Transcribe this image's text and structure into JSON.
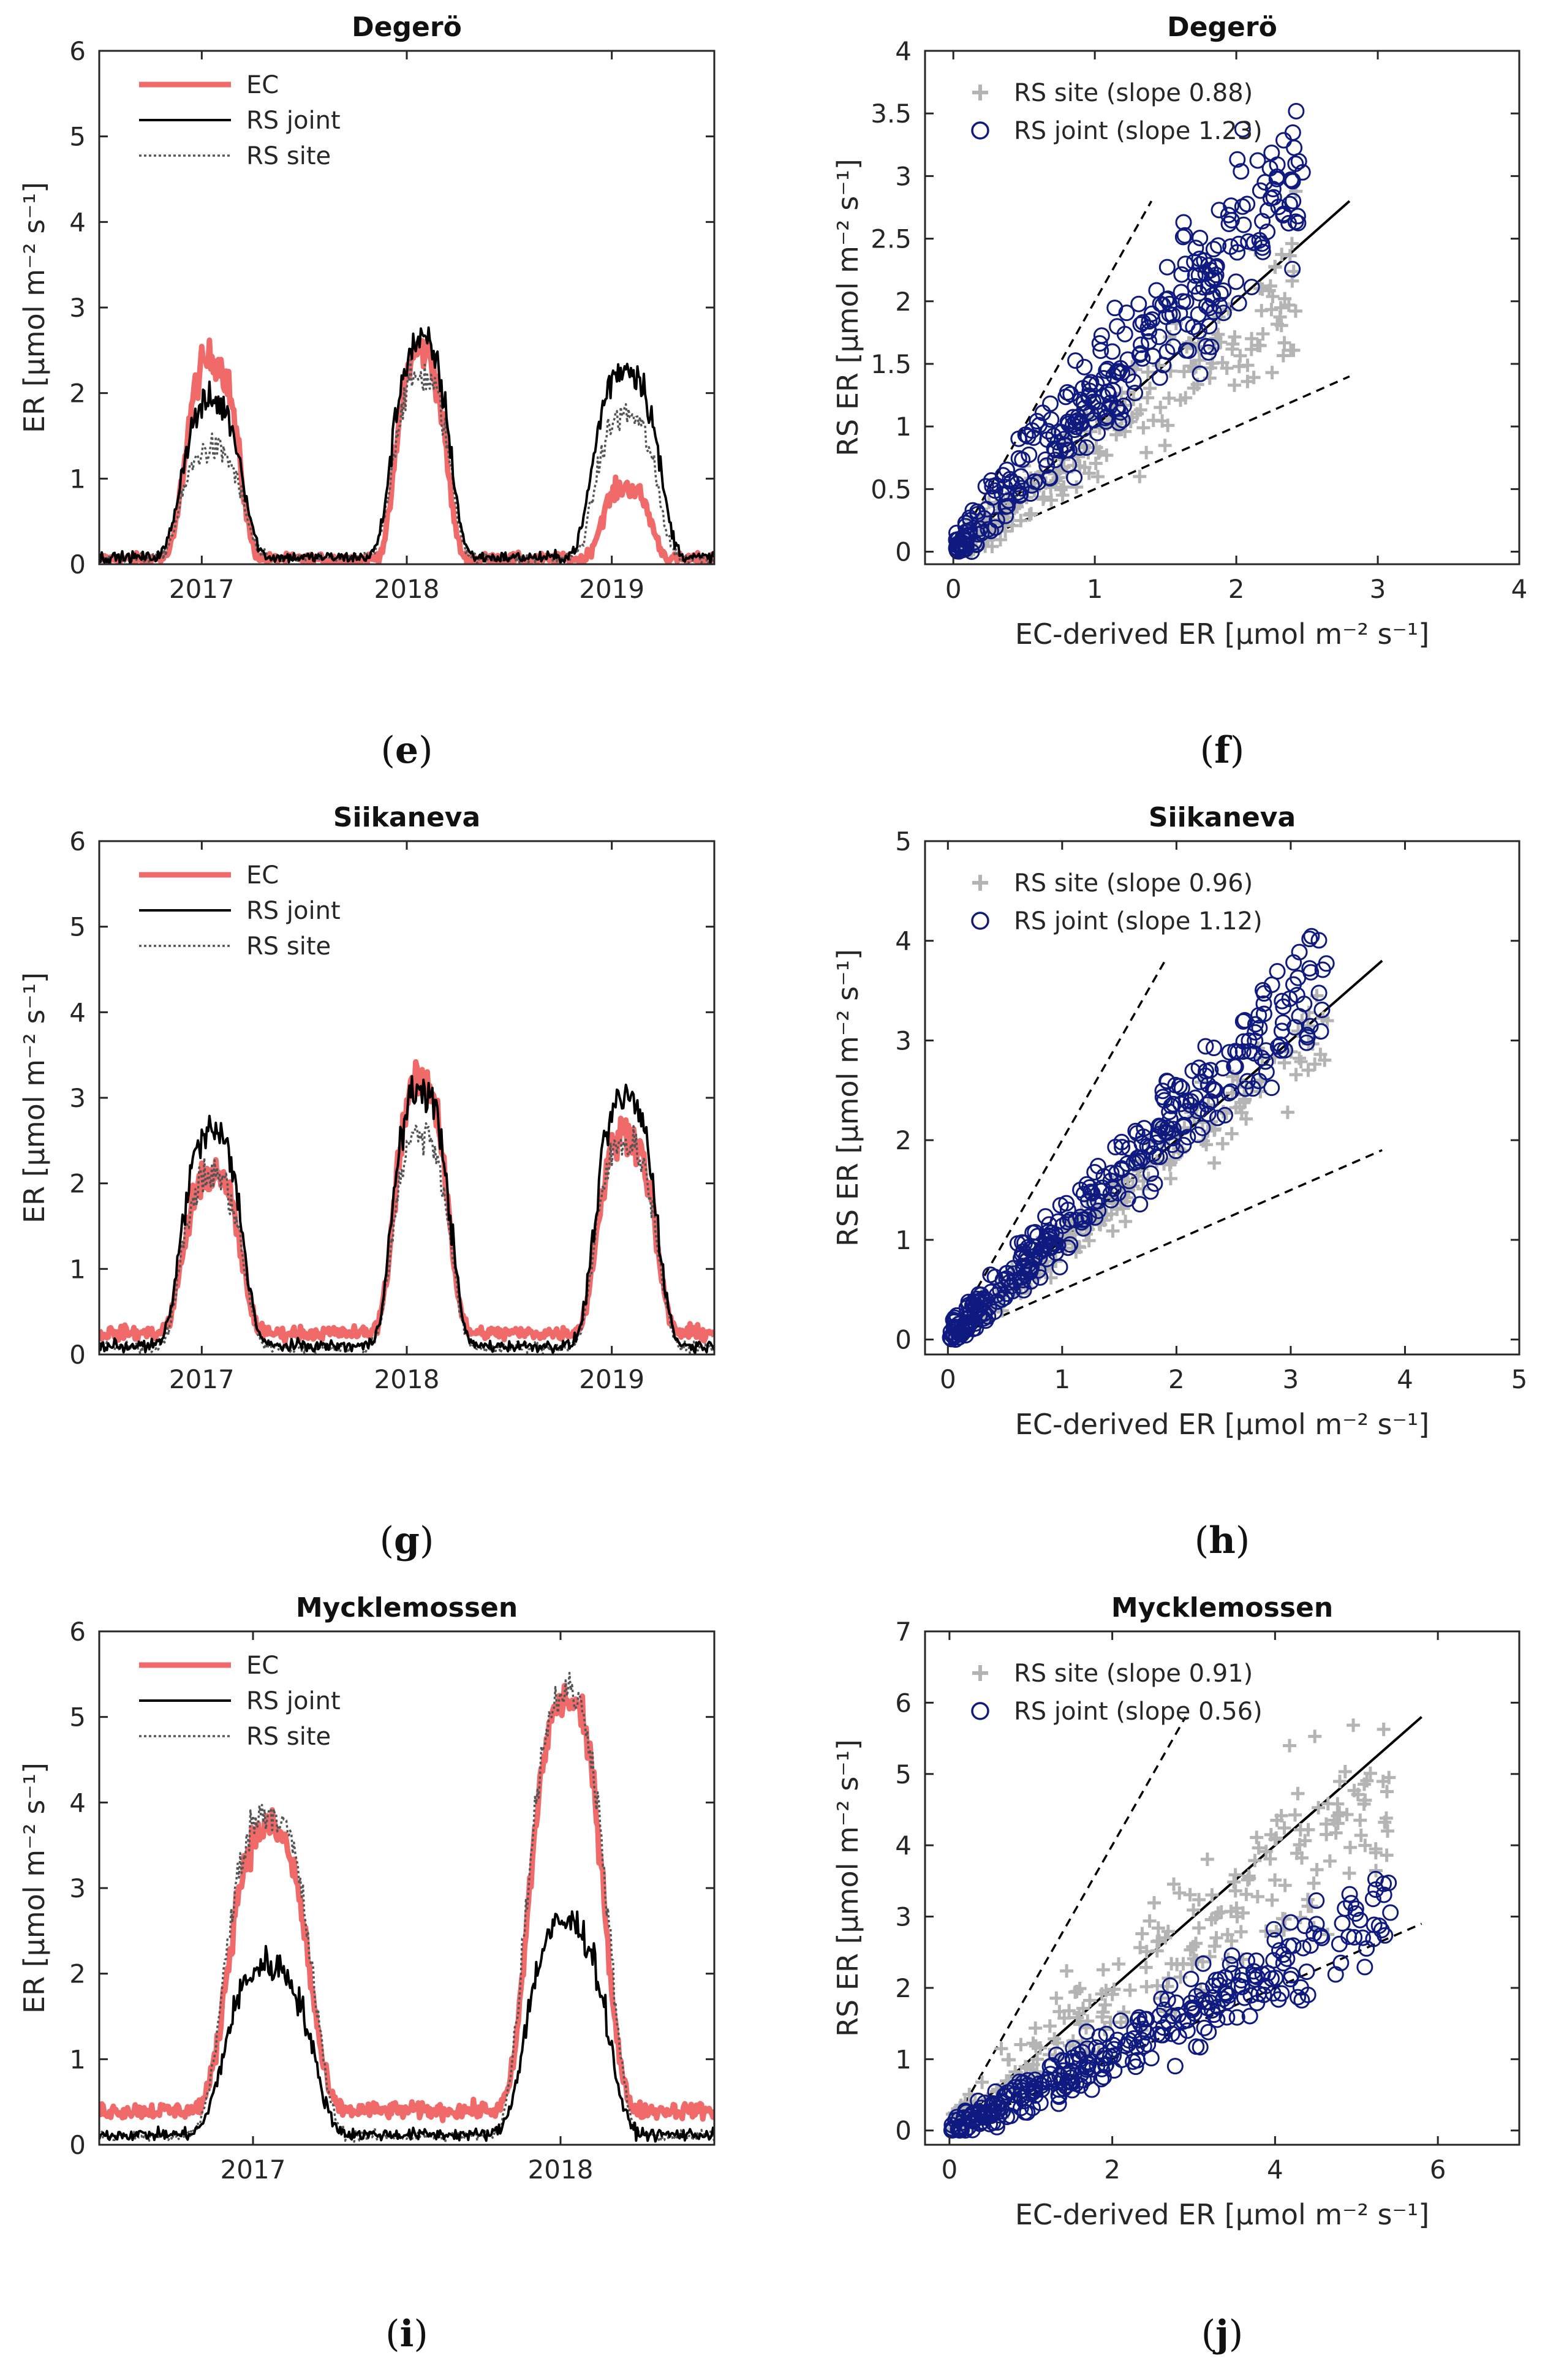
{
  "chart_data": [
    {
      "id": "e",
      "type": "line",
      "title": "Degerö",
      "xlabel": "",
      "ylabel": "ER [μmol m⁻² s⁻¹]",
      "xlim": [
        2016.5,
        2019.5
      ],
      "ylim": [
        0,
        6
      ],
      "xticks": [
        2017,
        2018,
        2019
      ],
      "yticks": [
        0,
        1,
        2,
        3,
        4,
        5,
        6
      ],
      "legend": "top-left",
      "peak_centers": [
        2017.05,
        2018.07,
        2019.07
      ],
      "series": [
        {
          "name": "EC",
          "style": "ec",
          "base": 0.06,
          "peaks": [
            2.4,
            2.5,
            0.9
          ],
          "widths": [
            0.14,
            0.13,
            0.13
          ]
        },
        {
          "name": "RS joint",
          "style": "joint",
          "base": 0.08,
          "peaks": [
            1.9,
            2.6,
            2.3
          ],
          "widths": [
            0.16,
            0.15,
            0.17
          ]
        },
        {
          "name": "RS site",
          "style": "site",
          "base": 0.07,
          "peaks": [
            1.35,
            2.2,
            1.75
          ],
          "widths": [
            0.16,
            0.15,
            0.16
          ]
        }
      ],
      "label": "(e)"
    },
    {
      "id": "f",
      "type": "scatter",
      "title": "Degerö",
      "xlabel": "EC-derived ER [μmol m⁻² s⁻¹]",
      "ylabel": "RS ER [μmol m⁻² s⁻¹]",
      "xlim": [
        -0.2,
        4
      ],
      "ylim": [
        -0.1,
        4
      ],
      "xticks": [
        0,
        1,
        2,
        3,
        4
      ],
      "yticks": [
        0,
        0.5,
        1,
        1.5,
        2,
        2.5,
        3,
        3.5,
        4
      ],
      "ytick_labels": [
        "0",
        "0.5",
        "1",
        "1.5",
        "2",
        "2.5",
        "3",
        "3.5",
        "4"
      ],
      "legend": "top-left",
      "series": [
        {
          "name": "RS site (slope 0.88)",
          "marker": "plus",
          "slope": 0.88,
          "xmax": 2.45,
          "spread": 0.22,
          "n": 230
        },
        {
          "name": "RS joint (slope 1.23)",
          "marker": "circle",
          "slope": 1.23,
          "xmax": 2.45,
          "spread": 0.3,
          "n": 320
        }
      ],
      "reference_lines": {
        "one_to_one_end": 2.8,
        "double_end": 1.4,
        "half_end": 2.8
      },
      "label": "(f)"
    },
    {
      "id": "g",
      "type": "line",
      "title": "Siikaneva",
      "xlabel": "",
      "ylabel": "ER [μmol m⁻² s⁻¹]",
      "xlim": [
        2016.5,
        2019.5
      ],
      "ylim": [
        0,
        6
      ],
      "xticks": [
        2017,
        2018,
        2019
      ],
      "yticks": [
        0,
        1,
        2,
        3,
        4,
        5,
        6
      ],
      "legend": "top-left",
      "peak_centers": [
        2017.05,
        2018.07,
        2019.07
      ],
      "series": [
        {
          "name": "EC",
          "style": "ec",
          "base": 0.25,
          "peaks": [
            2.1,
            3.2,
            2.6
          ],
          "widths": [
            0.15,
            0.14,
            0.15
          ]
        },
        {
          "name": "RS joint",
          "style": "joint",
          "base": 0.1,
          "peaks": [
            2.6,
            3.1,
            3.0
          ],
          "widths": [
            0.16,
            0.15,
            0.16
          ]
        },
        {
          "name": "RS site",
          "style": "site",
          "base": 0.08,
          "peaks": [
            2.1,
            2.6,
            2.5
          ],
          "widths": [
            0.16,
            0.15,
            0.16
          ]
        }
      ],
      "label": "(g)"
    },
    {
      "id": "h",
      "type": "scatter",
      "title": "Siikaneva",
      "xlabel": "EC-derived ER [μmol m⁻² s⁻¹]",
      "ylabel": "RS ER [μmol m⁻² s⁻¹]",
      "xlim": [
        -0.2,
        5
      ],
      "ylim": [
        -0.15,
        5
      ],
      "xticks": [
        0,
        1,
        2,
        3,
        4,
        5
      ],
      "yticks": [
        0,
        1,
        2,
        3,
        4,
        5
      ],
      "ytick_labels": [
        "0",
        "1",
        "2",
        "3",
        "4",
        "5"
      ],
      "legend": "top-left",
      "series": [
        {
          "name": "RS site (slope 0.96)",
          "marker": "plus",
          "slope": 0.96,
          "xmax": 3.3,
          "spread": 0.2,
          "n": 240
        },
        {
          "name": "RS joint (slope 1.12)",
          "marker": "circle",
          "slope": 1.12,
          "xmax": 3.3,
          "spread": 0.25,
          "n": 340
        }
      ],
      "reference_lines": {
        "one_to_one_end": 3.8,
        "double_end": 1.9,
        "half_end": 3.8
      },
      "label": "(h)"
    },
    {
      "id": "i",
      "type": "line",
      "title": "Mycklemossen",
      "xlabel": "",
      "ylabel": "ER [μmol m⁻² s⁻¹]",
      "xlim": [
        2016.5,
        2018.5
      ],
      "ylim": [
        0,
        6
      ],
      "xticks": [
        2017,
        2018
      ],
      "yticks": [
        0,
        1,
        2,
        3,
        4,
        5,
        6
      ],
      "legend": "top-left",
      "peak_centers": [
        2017.05,
        2018.02
      ],
      "series": [
        {
          "name": "EC",
          "style": "ec",
          "base": 0.4,
          "peaks": [
            3.7,
            5.2
          ],
          "widths": [
            0.14,
            0.13
          ]
        },
        {
          "name": "RS joint",
          "style": "joint",
          "base": 0.12,
          "peaks": [
            2.1,
            2.6
          ],
          "widths": [
            0.15,
            0.14
          ]
        },
        {
          "name": "RS site",
          "style": "site",
          "base": 0.1,
          "peaks": [
            3.9,
            5.3
          ],
          "widths": [
            0.15,
            0.14
          ]
        }
      ],
      "label": "(i)"
    },
    {
      "id": "j",
      "type": "scatter",
      "title": "Mycklemossen",
      "xlabel": "EC-derived ER [μmol m⁻² s⁻¹]",
      "ylabel": "RS ER [μmol m⁻² s⁻¹]",
      "xlim": [
        -0.3,
        7
      ],
      "ylim": [
        -0.2,
        7
      ],
      "xticks": [
        0,
        2,
        4,
        6
      ],
      "yticks": [
        0,
        1,
        2,
        3,
        4,
        5,
        6,
        7
      ],
      "ytick_labels": [
        "0",
        "1",
        "2",
        "3",
        "4",
        "5",
        "6",
        "7"
      ],
      "legend": "top-left",
      "series": [
        {
          "name": "RS site (slope 0.91)",
          "marker": "plus",
          "slope": 0.91,
          "xmax": 5.4,
          "spread": 0.55,
          "n": 260
        },
        {
          "name": "RS joint (slope 0.56)",
          "marker": "circle",
          "slope": 0.56,
          "xmax": 5.4,
          "spread": 0.3,
          "n": 320
        }
      ],
      "reference_lines": {
        "one_to_one_end": 5.8,
        "double_end": 2.9,
        "half_end": 5.8
      },
      "label": "(j)"
    }
  ],
  "colors": {
    "ec": "#f06a6a",
    "joint": "#000000",
    "site": "#555555",
    "plus": "#b4b4b4",
    "circle": "#0f1a80",
    "axis": "#262626"
  }
}
